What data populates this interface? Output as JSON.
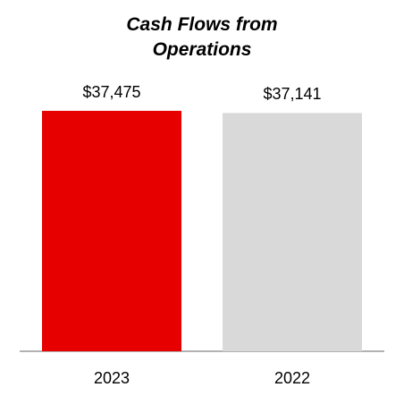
{
  "chart_data": {
    "type": "bar",
    "title": "Cash Flows from Operations",
    "categories": [
      "2023",
      "2022"
    ],
    "values": [
      37475,
      37141
    ],
    "value_labels": [
      "$37,475",
      "$37,141"
    ],
    "colors": [
      "#e60000",
      "#d9d9d9"
    ]
  }
}
